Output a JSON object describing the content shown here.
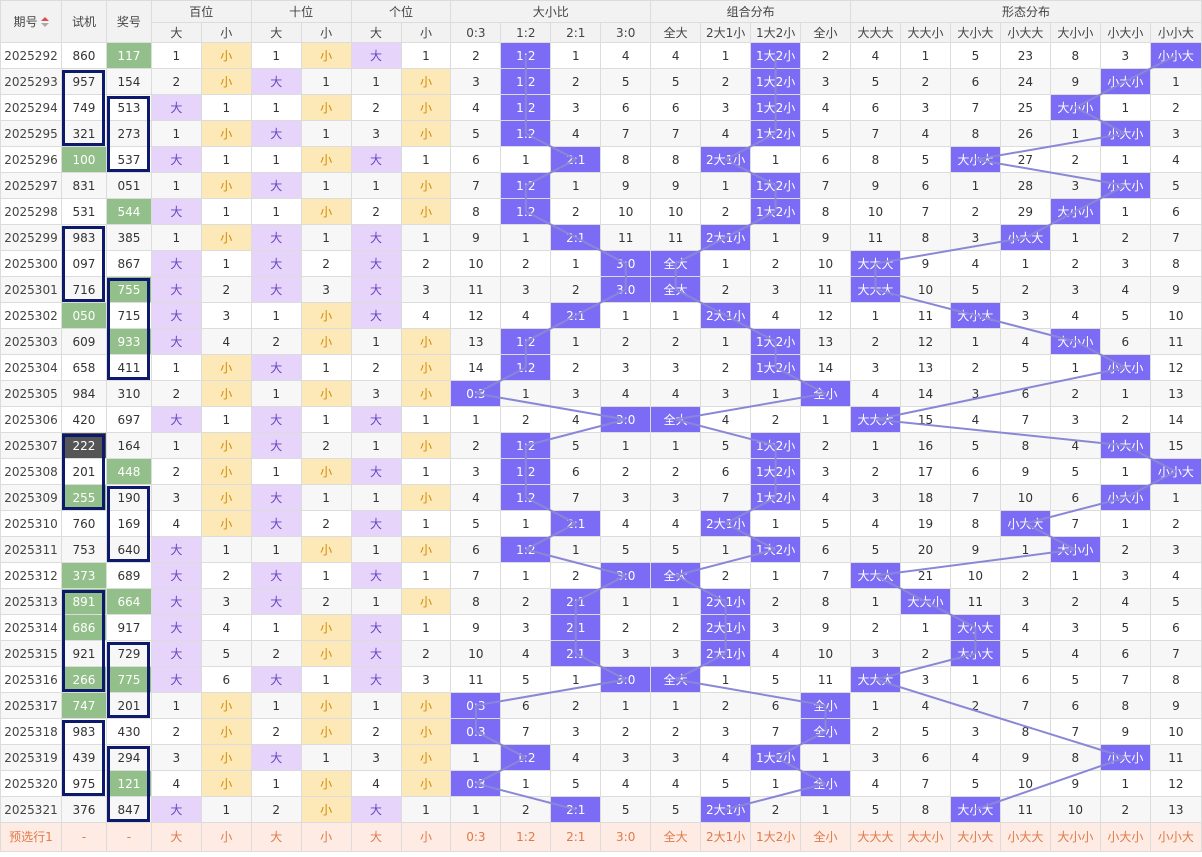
{
  "header": {
    "period": "期号",
    "shiji": "试机",
    "jianghao": "奖号",
    "groups": [
      "百位",
      "十位",
      "个位",
      "大小比",
      "组合分布",
      "形态分布"
    ],
    "sub": [
      "大",
      "小",
      "大",
      "小",
      "大",
      "小",
      "0:3",
      "1:2",
      "2:1",
      "3:0",
      "全大",
      "2大1小",
      "1大2小",
      "全小",
      "大大大",
      "大大小",
      "大小大",
      "小大大",
      "大小小",
      "小大小",
      "小小大"
    ]
  },
  "rows": [
    {
      "p": "2025292",
      "sj": "860",
      "jh": "117",
      "c": [
        "1",
        "小",
        "1",
        "小",
        "大",
        "1",
        "2",
        "1:2",
        "1",
        "4",
        "4",
        "1",
        "1大2小",
        "2",
        "4",
        "1",
        "5",
        "23",
        "8",
        "3",
        "小小大"
      ]
    },
    {
      "p": "2025293",
      "sj": "957",
      "jh": "154",
      "c": [
        "2",
        "小",
        "大",
        "1",
        "1",
        "小",
        "3",
        "1:2",
        "2",
        "5",
        "5",
        "2",
        "1大2小",
        "3",
        "5",
        "2",
        "6",
        "24",
        "9",
        "小大小",
        "1"
      ]
    },
    {
      "p": "2025294",
      "sj": "749",
      "jh": "513",
      "c": [
        "大",
        "1",
        "1",
        "小",
        "2",
        "小",
        "4",
        "1:2",
        "3",
        "6",
        "6",
        "3",
        "1大2小",
        "4",
        "6",
        "3",
        "7",
        "25",
        "大小小",
        "1",
        "2"
      ]
    },
    {
      "p": "2025295",
      "sj": "321",
      "jh": "273",
      "c": [
        "1",
        "小",
        "大",
        "1",
        "3",
        "小",
        "5",
        "1:2",
        "4",
        "7",
        "7",
        "4",
        "1大2小",
        "5",
        "7",
        "4",
        "8",
        "26",
        "1",
        "小大小",
        "3"
      ]
    },
    {
      "p": "2025296",
      "sj": "100",
      "jh": "537",
      "c": [
        "大",
        "1",
        "1",
        "小",
        "大",
        "1",
        "6",
        "1",
        "2:1",
        "8",
        "8",
        "2大1小",
        "1",
        "6",
        "8",
        "5",
        "大小大",
        "27",
        "2",
        "1",
        "4"
      ]
    },
    {
      "p": "2025297",
      "sj": "831",
      "jh": "051",
      "c": [
        "1",
        "小",
        "大",
        "1",
        "1",
        "小",
        "7",
        "1:2",
        "1",
        "9",
        "9",
        "1",
        "1大2小",
        "7",
        "9",
        "6",
        "1",
        "28",
        "3",
        "小大小",
        "5"
      ]
    },
    {
      "p": "2025298",
      "sj": "531",
      "jh": "544",
      "c": [
        "大",
        "1",
        "1",
        "小",
        "2",
        "小",
        "8",
        "1:2",
        "2",
        "10",
        "10",
        "2",
        "1大2小",
        "8",
        "10",
        "7",
        "2",
        "29",
        "大小小",
        "1",
        "6"
      ]
    },
    {
      "p": "2025299",
      "sj": "983",
      "jh": "385",
      "c": [
        "1",
        "小",
        "大",
        "1",
        "大",
        "1",
        "9",
        "1",
        "2:1",
        "11",
        "11",
        "2大1小",
        "1",
        "9",
        "11",
        "8",
        "3",
        "小大大",
        "1",
        "2",
        "7"
      ]
    },
    {
      "p": "2025300",
      "sj": "097",
      "jh": "867",
      "c": [
        "大",
        "1",
        "大",
        "2",
        "大",
        "2",
        "10",
        "2",
        "1",
        "3:0",
        "全大",
        "1",
        "2",
        "10",
        "大大大",
        "9",
        "4",
        "1",
        "2",
        "3",
        "8"
      ]
    },
    {
      "p": "2025301",
      "sj": "716",
      "jh": "755",
      "c": [
        "大",
        "2",
        "大",
        "3",
        "大",
        "3",
        "11",
        "3",
        "2",
        "3:0",
        "全大",
        "2",
        "3",
        "11",
        "大大大",
        "10",
        "5",
        "2",
        "3",
        "4",
        "9"
      ]
    },
    {
      "p": "2025302",
      "sj": "050",
      "jh": "715",
      "c": [
        "大",
        "3",
        "1",
        "小",
        "大",
        "4",
        "12",
        "4",
        "2:1",
        "1",
        "1",
        "2大1小",
        "4",
        "12",
        "1",
        "11",
        "大小大",
        "3",
        "4",
        "5",
        "10"
      ]
    },
    {
      "p": "2025303",
      "sj": "609",
      "jh": "933",
      "c": [
        "大",
        "4",
        "2",
        "小",
        "1",
        "小",
        "13",
        "1:2",
        "1",
        "2",
        "2",
        "1",
        "1大2小",
        "13",
        "2",
        "12",
        "1",
        "4",
        "大小小",
        "6",
        "11"
      ]
    },
    {
      "p": "2025304",
      "sj": "658",
      "jh": "411",
      "c": [
        "1",
        "小",
        "大",
        "1",
        "2",
        "小",
        "14",
        "1:2",
        "2",
        "3",
        "3",
        "2",
        "1大2小",
        "14",
        "3",
        "13",
        "2",
        "5",
        "1",
        "小大小",
        "12"
      ]
    },
    {
      "p": "2025305",
      "sj": "984",
      "jh": "310",
      "c": [
        "2",
        "小",
        "1",
        "小",
        "3",
        "小",
        "0:3",
        "1",
        "3",
        "4",
        "4",
        "3",
        "1",
        "全小",
        "4",
        "14",
        "3",
        "6",
        "2",
        "1",
        "13"
      ]
    },
    {
      "p": "2025306",
      "sj": "420",
      "jh": "697",
      "c": [
        "大",
        "1",
        "大",
        "1",
        "大",
        "1",
        "1",
        "2",
        "4",
        "3:0",
        "全大",
        "4",
        "2",
        "1",
        "大大大",
        "15",
        "4",
        "7",
        "3",
        "2",
        "14"
      ]
    },
    {
      "p": "2025307",
      "sj": "222",
      "jh": "164",
      "c": [
        "1",
        "小",
        "大",
        "2",
        "1",
        "小",
        "2",
        "1:2",
        "5",
        "1",
        "1",
        "5",
        "1大2小",
        "2",
        "1",
        "16",
        "5",
        "8",
        "4",
        "小大小",
        "15"
      ]
    },
    {
      "p": "2025308",
      "sj": "201",
      "jh": "448",
      "c": [
        "2",
        "小",
        "1",
        "小",
        "大",
        "1",
        "3",
        "1:2",
        "6",
        "2",
        "2",
        "6",
        "1大2小",
        "3",
        "2",
        "17",
        "6",
        "9",
        "5",
        "1",
        "小小大"
      ]
    },
    {
      "p": "2025309",
      "sj": "255",
      "jh": "190",
      "c": [
        "3",
        "小",
        "大",
        "1",
        "1",
        "小",
        "4",
        "1:2",
        "7",
        "3",
        "3",
        "7",
        "1大2小",
        "4",
        "3",
        "18",
        "7",
        "10",
        "6",
        "小大小",
        "1"
      ]
    },
    {
      "p": "2025310",
      "sj": "760",
      "jh": "169",
      "c": [
        "4",
        "小",
        "大",
        "2",
        "大",
        "1",
        "5",
        "1",
        "2:1",
        "4",
        "4",
        "2大1小",
        "1",
        "5",
        "4",
        "19",
        "8",
        "小大大",
        "7",
        "1",
        "2"
      ]
    },
    {
      "p": "2025311",
      "sj": "753",
      "jh": "640",
      "c": [
        "大",
        "1",
        "1",
        "小",
        "1",
        "小",
        "6",
        "1:2",
        "1",
        "5",
        "5",
        "1",
        "1大2小",
        "6",
        "5",
        "20",
        "9",
        "1",
        "大小小",
        "2",
        "3"
      ]
    },
    {
      "p": "2025312",
      "sj": "373",
      "jh": "689",
      "c": [
        "大",
        "2",
        "大",
        "1",
        "大",
        "1",
        "7",
        "1",
        "2",
        "3:0",
        "全大",
        "2",
        "1",
        "7",
        "大大大",
        "21",
        "10",
        "2",
        "1",
        "3",
        "4"
      ]
    },
    {
      "p": "2025313",
      "sj": "891",
      "jh": "664",
      "c": [
        "大",
        "3",
        "大",
        "2",
        "1",
        "小",
        "8",
        "2",
        "2:1",
        "1",
        "1",
        "2大1小",
        "2",
        "8",
        "1",
        "大大小",
        "11",
        "3",
        "2",
        "4",
        "5"
      ]
    },
    {
      "p": "2025314",
      "sj": "686",
      "jh": "917",
      "c": [
        "大",
        "4",
        "1",
        "小",
        "大",
        "1",
        "9",
        "3",
        "2:1",
        "2",
        "2",
        "2大1小",
        "3",
        "9",
        "2",
        "1",
        "大小大",
        "4",
        "3",
        "5",
        "6"
      ]
    },
    {
      "p": "2025315",
      "sj": "921",
      "jh": "729",
      "c": [
        "大",
        "5",
        "2",
        "小",
        "大",
        "2",
        "10",
        "4",
        "2:1",
        "3",
        "3",
        "2大1小",
        "4",
        "10",
        "3",
        "2",
        "大小大",
        "5",
        "4",
        "6",
        "7"
      ]
    },
    {
      "p": "2025316",
      "sj": "266",
      "jh": "775",
      "c": [
        "大",
        "6",
        "大",
        "1",
        "大",
        "3",
        "11",
        "5",
        "1",
        "3:0",
        "全大",
        "1",
        "5",
        "11",
        "大大大",
        "3",
        "1",
        "6",
        "5",
        "7",
        "8"
      ]
    },
    {
      "p": "2025317",
      "sj": "747",
      "jh": "201",
      "c": [
        "1",
        "小",
        "1",
        "小",
        "1",
        "小",
        "0:3",
        "6",
        "2",
        "1",
        "1",
        "2",
        "6",
        "全小",
        "1",
        "4",
        "2",
        "7",
        "6",
        "8",
        "9"
      ]
    },
    {
      "p": "2025318",
      "sj": "983",
      "jh": "430",
      "c": [
        "2",
        "小",
        "2",
        "小",
        "2",
        "小",
        "0:3",
        "7",
        "3",
        "2",
        "2",
        "3",
        "7",
        "全小",
        "2",
        "5",
        "3",
        "8",
        "7",
        "9",
        "10"
      ]
    },
    {
      "p": "2025319",
      "sj": "439",
      "jh": "294",
      "c": [
        "3",
        "小",
        "大",
        "1",
        "3",
        "小",
        "1",
        "1:2",
        "4",
        "3",
        "3",
        "4",
        "1大2小",
        "1",
        "3",
        "6",
        "4",
        "9",
        "8",
        "小大小",
        "11"
      ]
    },
    {
      "p": "2025320",
      "sj": "975",
      "jh": "121",
      "c": [
        "4",
        "小",
        "1",
        "小",
        "4",
        "小",
        "0:3",
        "1",
        "5",
        "4",
        "4",
        "5",
        "1",
        "全小",
        "4",
        "7",
        "5",
        "10",
        "9",
        "1",
        "12"
      ]
    },
    {
      "p": "2025321",
      "sj": "376",
      "jh": "847",
      "c": [
        "大",
        "1",
        "2",
        "小",
        "大",
        "1",
        "1",
        "2",
        "2:1",
        "5",
        "5",
        "2大1小",
        "2",
        "1",
        "5",
        "8",
        "大小大",
        "11",
        "10",
        "2",
        "13"
      ]
    }
  ],
  "forecast": {
    "label": "预选行1",
    "sj": "-",
    "jh": "-"
  },
  "green_sj": [
    "2025296",
    "2025302",
    "2025312",
    "2025313",
    "2025314",
    "2025316",
    "2025317",
    "2025309"
  ],
  "green_jh": [
    "2025292",
    "2025298",
    "2025301",
    "2025303",
    "2025308",
    "2025313",
    "2025316",
    "2025320"
  ],
  "dark_sj": [
    "2025307"
  ]
}
